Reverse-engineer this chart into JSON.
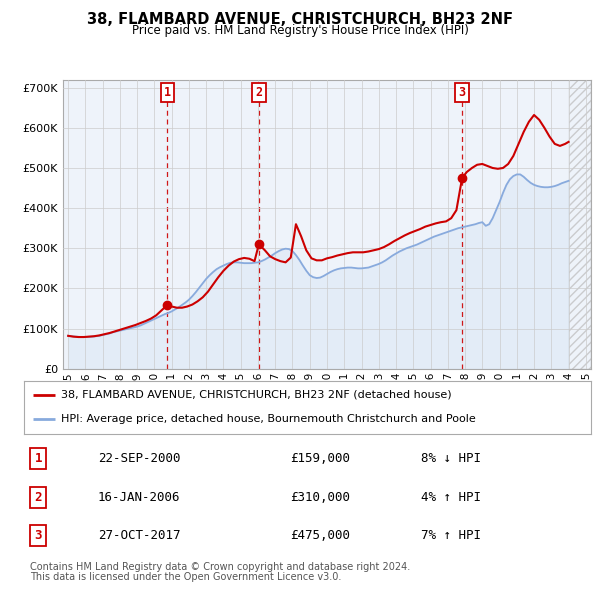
{
  "title": "38, FLAMBARD AVENUE, CHRISTCHURCH, BH23 2NF",
  "subtitle": "Price paid vs. HM Land Registry's House Price Index (HPI)",
  "ylim": [
    0,
    720000
  ],
  "yticks": [
    0,
    100000,
    200000,
    300000,
    400000,
    500000,
    600000,
    700000
  ],
  "property_color": "#cc0000",
  "hpi_color": "#88aadd",
  "hpi_fill_color": "#dde8f5",
  "legend_property": "38, FLAMBARD AVENUE, CHRISTCHURCH, BH23 2NF (detached house)",
  "legend_hpi": "HPI: Average price, detached house, Bournemouth Christchurch and Poole",
  "sales": [
    {
      "num": 1,
      "date": "22-SEP-2000",
      "price": 159000,
      "hpi_pct": "8%",
      "direction": "↓"
    },
    {
      "num": 2,
      "date": "16-JAN-2006",
      "price": 310000,
      "hpi_pct": "4%",
      "direction": "↑"
    },
    {
      "num": 3,
      "date": "27-OCT-2017",
      "price": 475000,
      "hpi_pct": "7%",
      "direction": "↑"
    }
  ],
  "sale_years": [
    2000.75,
    2006.05,
    2017.83
  ],
  "sale_prices": [
    159000,
    310000,
    475000
  ],
  "footnote1": "Contains HM Land Registry data © Crown copyright and database right 2024.",
  "footnote2": "This data is licensed under the Open Government Licence v3.0.",
  "hpi_years": [
    1995.0,
    1995.2,
    1995.4,
    1995.6,
    1995.8,
    1996.0,
    1996.2,
    1996.4,
    1996.6,
    1996.8,
    1997.0,
    1997.2,
    1997.4,
    1997.6,
    1997.8,
    1998.0,
    1998.2,
    1998.4,
    1998.6,
    1998.8,
    1999.0,
    1999.2,
    1999.4,
    1999.6,
    1999.8,
    2000.0,
    2000.2,
    2000.4,
    2000.6,
    2000.8,
    2001.0,
    2001.2,
    2001.4,
    2001.6,
    2001.8,
    2002.0,
    2002.2,
    2002.4,
    2002.6,
    2002.8,
    2003.0,
    2003.2,
    2003.4,
    2003.6,
    2003.8,
    2004.0,
    2004.2,
    2004.4,
    2004.6,
    2004.8,
    2005.0,
    2005.2,
    2005.4,
    2005.6,
    2005.8,
    2006.0,
    2006.2,
    2006.4,
    2006.6,
    2006.8,
    2007.0,
    2007.2,
    2007.4,
    2007.6,
    2007.8,
    2008.0,
    2008.2,
    2008.4,
    2008.6,
    2008.8,
    2009.0,
    2009.2,
    2009.4,
    2009.6,
    2009.8,
    2010.0,
    2010.2,
    2010.4,
    2010.6,
    2010.8,
    2011.0,
    2011.2,
    2011.4,
    2011.6,
    2011.8,
    2012.0,
    2012.2,
    2012.4,
    2012.6,
    2012.8,
    2013.0,
    2013.2,
    2013.4,
    2013.6,
    2013.8,
    2014.0,
    2014.2,
    2014.4,
    2014.6,
    2014.8,
    2015.0,
    2015.2,
    2015.4,
    2015.6,
    2015.8,
    2016.0,
    2016.2,
    2016.4,
    2016.6,
    2016.8,
    2017.0,
    2017.2,
    2017.4,
    2017.6,
    2017.8,
    2018.0,
    2018.2,
    2018.4,
    2018.6,
    2018.8,
    2019.0,
    2019.2,
    2019.4,
    2019.6,
    2019.8,
    2020.0,
    2020.2,
    2020.4,
    2020.6,
    2020.8,
    2021.0,
    2021.2,
    2021.4,
    2021.6,
    2021.8,
    2022.0,
    2022.2,
    2022.4,
    2022.6,
    2022.8,
    2023.0,
    2023.2,
    2023.4,
    2023.6,
    2023.8,
    2024.0
  ],
  "hpi_values": [
    82000,
    81000,
    80000,
    79500,
    79000,
    79000,
    79500,
    80000,
    81000,
    82000,
    84000,
    86000,
    88000,
    91000,
    93000,
    95000,
    97000,
    99000,
    101000,
    103000,
    105000,
    108000,
    112000,
    116000,
    120000,
    124000,
    128000,
    132000,
    136000,
    139000,
    143000,
    148000,
    153000,
    159000,
    165000,
    172000,
    181000,
    191000,
    202000,
    213000,
    224000,
    233000,
    241000,
    248000,
    253000,
    257000,
    261000,
    264000,
    265000,
    265000,
    264000,
    263000,
    263000,
    263000,
    264000,
    265000,
    268000,
    272000,
    277000,
    282000,
    288000,
    293000,
    297000,
    299000,
    298000,
    293000,
    283000,
    271000,
    257000,
    244000,
    233000,
    228000,
    226000,
    227000,
    231000,
    236000,
    241000,
    245000,
    248000,
    250000,
    251000,
    252000,
    252000,
    251000,
    250000,
    250000,
    251000,
    252000,
    255000,
    258000,
    261000,
    265000,
    270000,
    276000,
    282000,
    287000,
    292000,
    296000,
    300000,
    303000,
    306000,
    309000,
    313000,
    317000,
    321000,
    325000,
    329000,
    332000,
    335000,
    338000,
    341000,
    344000,
    347000,
    350000,
    352000,
    354000,
    356000,
    358000,
    360000,
    363000,
    365000,
    356000,
    360000,
    375000,
    395000,
    415000,
    438000,
    458000,
    472000,
    480000,
    484000,
    484000,
    478000,
    470000,
    463000,
    458000,
    455000,
    453000,
    452000,
    452000,
    453000,
    455000,
    458000,
    462000,
    465000,
    468000
  ],
  "prop_years": [
    1995.0,
    1995.3,
    1995.6,
    1995.9,
    1996.2,
    1996.5,
    1996.8,
    1997.1,
    1997.4,
    1997.7,
    1998.0,
    1998.3,
    1998.6,
    1998.9,
    1999.2,
    1999.5,
    1999.8,
    2000.1,
    2000.4,
    2000.75,
    2001.0,
    2001.3,
    2001.6,
    2001.9,
    2002.2,
    2002.5,
    2002.8,
    2003.1,
    2003.4,
    2003.7,
    2004.0,
    2004.3,
    2004.6,
    2004.9,
    2005.2,
    2005.5,
    2005.8,
    2006.05,
    2006.4,
    2006.7,
    2007.0,
    2007.3,
    2007.6,
    2007.9,
    2008.2,
    2008.5,
    2008.8,
    2009.1,
    2009.4,
    2009.7,
    2010.0,
    2010.3,
    2010.6,
    2010.9,
    2011.2,
    2011.5,
    2011.8,
    2012.1,
    2012.4,
    2012.7,
    2013.0,
    2013.3,
    2013.6,
    2013.9,
    2014.2,
    2014.5,
    2014.8,
    2015.1,
    2015.4,
    2015.7,
    2016.0,
    2016.3,
    2016.6,
    2016.9,
    2017.2,
    2017.5,
    2017.83,
    2018.1,
    2018.4,
    2018.7,
    2019.0,
    2019.3,
    2019.6,
    2019.9,
    2020.2,
    2020.5,
    2020.8,
    2021.1,
    2021.4,
    2021.7,
    2022.0,
    2022.3,
    2022.6,
    2022.9,
    2023.2,
    2023.5,
    2023.8,
    2024.0
  ],
  "prop_values": [
    82000,
    80000,
    79000,
    79000,
    80000,
    81000,
    83000,
    86000,
    89000,
    93000,
    97000,
    101000,
    105000,
    109000,
    114000,
    119000,
    125000,
    133000,
    145000,
    159000,
    155000,
    152000,
    152000,
    155000,
    160000,
    168000,
    178000,
    192000,
    210000,
    228000,
    244000,
    257000,
    267000,
    273000,
    276000,
    274000,
    268000,
    310000,
    295000,
    280000,
    273000,
    268000,
    265000,
    277000,
    360000,
    330000,
    295000,
    275000,
    270000,
    270000,
    275000,
    278000,
    282000,
    285000,
    288000,
    290000,
    290000,
    290000,
    292000,
    295000,
    298000,
    303000,
    310000,
    318000,
    325000,
    332000,
    338000,
    343000,
    348000,
    354000,
    358000,
    362000,
    365000,
    367000,
    375000,
    395000,
    475000,
    490000,
    500000,
    508000,
    510000,
    505000,
    500000,
    498000,
    500000,
    510000,
    530000,
    560000,
    590000,
    615000,
    632000,
    620000,
    600000,
    578000,
    560000,
    555000,
    560000,
    565000
  ],
  "xlim_start": 1994.7,
  "xlim_end": 2025.3,
  "hatch_start": 2024.0,
  "background_color": "#ffffff",
  "chart_bg_color": "#eef3fa",
  "grid_color": "#cccccc",
  "marker_box_color": "#cc0000",
  "dashed_line_color": "#cc0000"
}
